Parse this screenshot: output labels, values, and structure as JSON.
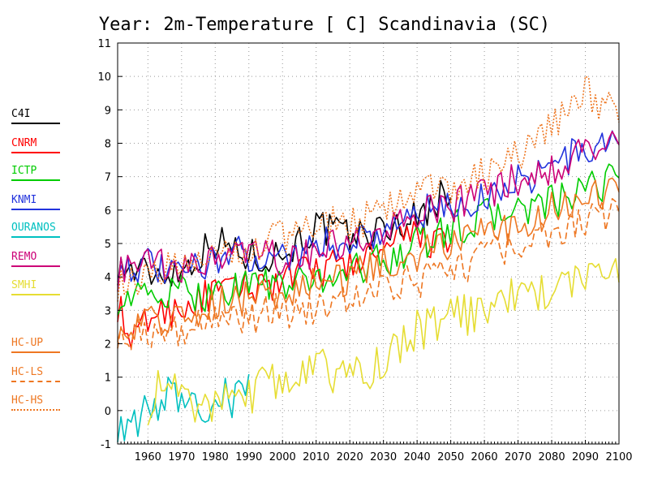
{
  "chart_data": {
    "type": "line",
    "title": "Year: 2m-Temperature [   C] Scandinavia (SC)",
    "xlabel": "",
    "ylabel": "",
    "xlim": [
      1951,
      2100
    ],
    "ylim": [
      -1,
      11
    ],
    "x_ticks": [
      1960,
      1970,
      1980,
      1990,
      2000,
      2010,
      2020,
      2030,
      2040,
      2050,
      2060,
      2070,
      2080,
      2090,
      2100
    ],
    "y_ticks": [
      -1,
      0,
      1,
      2,
      3,
      4,
      5,
      6,
      7,
      8,
      9,
      10,
      11
    ],
    "grid": true,
    "legend_position": "left",
    "series": [
      {
        "name": "C4I",
        "color": "#000000",
        "dash": "solid",
        "points": [
          [
            1951,
            4.3
          ],
          [
            1960,
            4.1
          ],
          [
            1970,
            4.2
          ],
          [
            1980,
            5.1
          ],
          [
            1990,
            4.6
          ],
          [
            2000,
            4.7
          ],
          [
            2010,
            5.5
          ],
          [
            2020,
            5.2
          ],
          [
            2030,
            5.4
          ],
          [
            2040,
            5.8
          ],
          [
            2050,
            6.6
          ]
        ]
      },
      {
        "name": "CNRM",
        "color": "#ff0000",
        "dash": "solid",
        "points": [
          [
            1951,
            3.2
          ],
          [
            1955,
            1.9
          ],
          [
            1960,
            2.8
          ],
          [
            1970,
            3.1
          ],
          [
            1980,
            3.5
          ],
          [
            1990,
            3.7
          ],
          [
            2000,
            3.9
          ],
          [
            2010,
            4.2
          ],
          [
            2020,
            4.4
          ],
          [
            2030,
            4.7
          ],
          [
            2040,
            5.3
          ],
          [
            2050,
            4.8
          ]
        ]
      },
      {
        "name": "ICTP",
        "color": "#00cc00",
        "dash": "solid",
        "points": [
          [
            1951,
            3.4
          ],
          [
            1960,
            3.4
          ],
          [
            1970,
            3.5
          ],
          [
            1980,
            3.5
          ],
          [
            1990,
            3.9
          ],
          [
            2000,
            3.7
          ],
          [
            2010,
            3.9
          ],
          [
            2020,
            4.2
          ],
          [
            2030,
            4.5
          ],
          [
            2040,
            5.0
          ],
          [
            2050,
            5.4
          ],
          [
            2060,
            5.8
          ],
          [
            2070,
            6.0
          ],
          [
            2080,
            6.2
          ],
          [
            2090,
            6.5
          ],
          [
            2100,
            7.1
          ]
        ]
      },
      {
        "name": "KNMI",
        "color": "#2233dd",
        "dash": "solid",
        "points": [
          [
            1951,
            4.4
          ],
          [
            1960,
            4.3
          ],
          [
            1970,
            4.0
          ],
          [
            1980,
            4.6
          ],
          [
            1990,
            4.7
          ],
          [
            2000,
            4.6
          ],
          [
            2010,
            4.9
          ],
          [
            2020,
            5.1
          ],
          [
            2030,
            5.4
          ],
          [
            2040,
            5.9
          ],
          [
            2050,
            6.0
          ],
          [
            2060,
            6.4
          ],
          [
            2070,
            6.9
          ],
          [
            2080,
            7.3
          ],
          [
            2090,
            7.8
          ],
          [
            2100,
            8.1
          ]
        ]
      },
      {
        "name": "OURANOS",
        "color": "#00c0c0",
        "dash": "solid",
        "points": [
          [
            1951,
            -0.3
          ],
          [
            1955,
            -0.8
          ],
          [
            1960,
            0.2
          ],
          [
            1965,
            0.4
          ],
          [
            1970,
            0.5
          ],
          [
            1975,
            0.0
          ],
          [
            1980,
            0.4
          ],
          [
            1985,
            0.3
          ],
          [
            1990,
            0.6
          ]
        ]
      },
      {
        "name": "REMO",
        "color": "#cc0077",
        "dash": "solid",
        "points": [
          [
            1951,
            4.1
          ],
          [
            1960,
            4.4
          ],
          [
            1970,
            4.1
          ],
          [
            1980,
            4.6
          ],
          [
            1990,
            4.7
          ],
          [
            2000,
            4.5
          ],
          [
            2010,
            4.8
          ],
          [
            2020,
            5.0
          ],
          [
            2030,
            5.3
          ],
          [
            2040,
            5.8
          ],
          [
            2050,
            6.1
          ],
          [
            2060,
            6.5
          ],
          [
            2070,
            6.9
          ],
          [
            2080,
            7.3
          ],
          [
            2090,
            7.7
          ],
          [
            2100,
            8.1
          ]
        ]
      },
      {
        "name": "SMHI",
        "color": "#e6dd33",
        "dash": "solid",
        "points": [
          [
            1960,
            0.2
          ],
          [
            1965,
            0.8
          ],
          [
            1970,
            0.6
          ],
          [
            1975,
            -0.1
          ],
          [
            1980,
            0.4
          ],
          [
            1985,
            0.9
          ],
          [
            1990,
            0.5
          ],
          [
            2000,
            1.0
          ],
          [
            2010,
            1.3
          ],
          [
            2020,
            1.0
          ],
          [
            2030,
            1.5
          ],
          [
            2040,
            2.4
          ],
          [
            2050,
            2.8
          ],
          [
            2060,
            3.0
          ],
          [
            2070,
            3.5
          ],
          [
            2080,
            3.6
          ],
          [
            2090,
            4.0
          ],
          [
            2100,
            4.4
          ]
        ]
      },
      {
        "name": "HC-UP",
        "color": "#ee7722",
        "dash": "solid",
        "points": [
          [
            1951,
            2.6
          ],
          [
            1960,
            2.7
          ],
          [
            1970,
            2.8
          ],
          [
            1980,
            3.3
          ],
          [
            1990,
            3.4
          ],
          [
            2000,
            3.5
          ],
          [
            2010,
            3.8
          ],
          [
            2020,
            4.0
          ],
          [
            2030,
            4.4
          ],
          [
            2040,
            4.7
          ],
          [
            2050,
            5.0
          ],
          [
            2060,
            5.3
          ],
          [
            2070,
            5.6
          ],
          [
            2080,
            6.0
          ],
          [
            2090,
            6.3
          ],
          [
            2100,
            6.7
          ]
        ]
      },
      {
        "name": "HC-LS",
        "color": "#ee7722",
        "dash": "dashed",
        "points": [
          [
            1951,
            2.4
          ],
          [
            1960,
            2.3
          ],
          [
            1970,
            2.5
          ],
          [
            1980,
            2.7
          ],
          [
            1990,
            2.8
          ],
          [
            2000,
            3.0
          ],
          [
            2010,
            3.1
          ],
          [
            2020,
            3.3
          ],
          [
            2030,
            3.6
          ],
          [
            2040,
            3.9
          ],
          [
            2050,
            4.2
          ],
          [
            2060,
            4.6
          ],
          [
            2070,
            4.9
          ],
          [
            2080,
            5.3
          ],
          [
            2090,
            5.6
          ],
          [
            2100,
            6.1
          ]
        ]
      },
      {
        "name": "HC-HS",
        "color": "#ee7722",
        "dash": "dotted",
        "points": [
          [
            1951,
            3.8
          ],
          [
            1960,
            4.1
          ],
          [
            1970,
            4.4
          ],
          [
            1980,
            4.6
          ],
          [
            1990,
            4.8
          ],
          [
            2000,
            5.2
          ],
          [
            2010,
            5.6
          ],
          [
            2020,
            5.6
          ],
          [
            2030,
            5.9
          ],
          [
            2040,
            6.5
          ],
          [
            2050,
            6.7
          ],
          [
            2060,
            7.1
          ],
          [
            2070,
            7.6
          ],
          [
            2080,
            8.6
          ],
          [
            2090,
            9.5
          ],
          [
            2100,
            8.8
          ]
        ]
      }
    ]
  }
}
